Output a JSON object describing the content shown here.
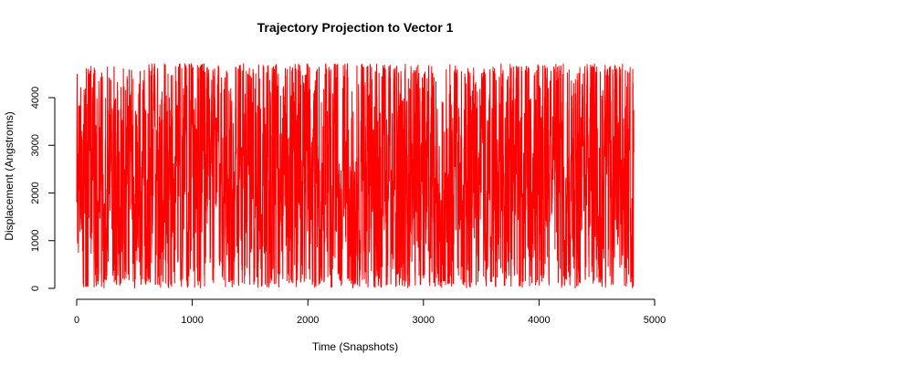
{
  "chart_data": {
    "type": "line",
    "title": "Trajectory Projection to Vector 1",
    "xlabel": "Time (Snapshots)",
    "ylabel": "Displacement (Angstroms)",
    "xlim": [
      0,
      5000
    ],
    "ylim": [
      0,
      4700
    ],
    "xticks": [
      0,
      1000,
      2000,
      3000,
      4000,
      5000
    ],
    "yticks": [
      0,
      1000,
      2000,
      3000,
      4000
    ],
    "grid": false,
    "legend": "none",
    "series": [
      {
        "color": "#ff0000",
        "x_range": [
          0,
          4820
        ],
        "y_range": [
          0,
          4720
        ],
        "approx_points": 4820,
        "description_mode": "dense noisy trace spanning full y range"
      }
    ]
  }
}
